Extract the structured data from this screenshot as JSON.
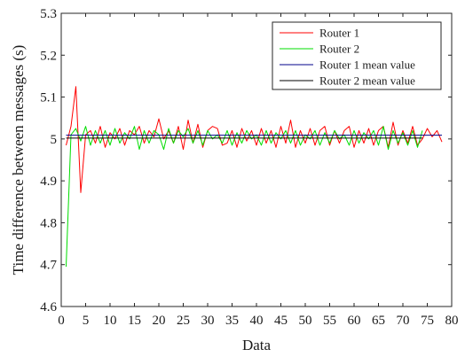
{
  "chart_data": {
    "type": "line",
    "xlabel": "Data",
    "ylabel": "Time difference between messages (s)",
    "xlim": [
      0,
      80
    ],
    "ylim": [
      4.6,
      5.3
    ],
    "xticks": [
      0,
      5,
      10,
      15,
      20,
      25,
      30,
      35,
      40,
      45,
      50,
      55,
      60,
      65,
      70,
      75,
      80
    ],
    "yticks": [
      4.6,
      4.7,
      4.8,
      4.9,
      5,
      5.1,
      5.2,
      5.3
    ],
    "ytick_labels": [
      "4.6",
      "4.7",
      "4.8",
      "4.9",
      "5",
      "5.1",
      "5.2",
      "5.3"
    ],
    "grid": false,
    "legend_position": "top-right",
    "series": [
      {
        "name": "Router 1",
        "color": "#ff0000",
        "x": [
          1,
          2,
          3,
          4,
          5,
          6,
          7,
          8,
          9,
          10,
          11,
          12,
          13,
          14,
          15,
          16,
          17,
          18,
          19,
          20,
          21,
          22,
          23,
          24,
          25,
          26,
          27,
          28,
          29,
          30,
          31,
          32,
          33,
          34,
          35,
          36,
          37,
          38,
          39,
          40,
          41,
          42,
          43,
          44,
          45,
          46,
          47,
          48,
          49,
          50,
          51,
          52,
          53,
          54,
          55,
          56,
          57,
          58,
          59,
          60,
          61,
          62,
          63,
          64,
          65,
          66,
          67,
          68,
          69,
          70,
          71,
          72,
          73,
          74,
          75,
          76,
          77,
          78
        ],
        "values": [
          4.985,
          5.03,
          5.125,
          4.872,
          5.01,
          5.02,
          4.99,
          5.03,
          4.98,
          5.015,
          5.0,
          5.025,
          4.985,
          5.02,
          5.01,
          5.03,
          4.99,
          5.02,
          5.005,
          5.048,
          5.0,
          5.02,
          4.99,
          5.03,
          4.975,
          5.045,
          4.99,
          5.035,
          4.98,
          5.02,
          5.03,
          5.025,
          4.985,
          4.99,
          5.02,
          4.98,
          5.025,
          4.995,
          5.02,
          4.985,
          5.025,
          4.99,
          5.02,
          4.98,
          5.03,
          4.99,
          5.045,
          4.98,
          5.02,
          4.99,
          5.025,
          4.985,
          5.02,
          5.03,
          4.985,
          5.02,
          4.99,
          5.02,
          5.03,
          4.98,
          5.02,
          4.99,
          5.025,
          4.985,
          5.02,
          5.03,
          4.98,
          5.04,
          4.985,
          5.02,
          4.99,
          5.03,
          4.985,
          5.0,
          5.025,
          5.005,
          5.02,
          4.993
        ]
      },
      {
        "name": "Router 2",
        "color": "#00dd00",
        "x": [
          1,
          2,
          3,
          4,
          5,
          6,
          7,
          8,
          9,
          10,
          11,
          12,
          13,
          14,
          15,
          16,
          17,
          18,
          19,
          20,
          21,
          22,
          23,
          24,
          25,
          26,
          27,
          28,
          29,
          30,
          31,
          32,
          33,
          34,
          35,
          36,
          37,
          38,
          39,
          40,
          41,
          42,
          43,
          44,
          45,
          46,
          47,
          48,
          49,
          50,
          51,
          52,
          53,
          54,
          55,
          56,
          57,
          58,
          59,
          60,
          61,
          62,
          63,
          64,
          65,
          66,
          67,
          68,
          69,
          70,
          71,
          72,
          73,
          74
        ],
        "values": [
          4.695,
          5.01,
          5.025,
          4.995,
          5.03,
          4.985,
          5.02,
          4.99,
          5.02,
          4.985,
          5.025,
          4.99,
          5.015,
          5.0,
          5.03,
          4.975,
          5.02,
          4.99,
          5.02,
          5.01,
          4.975,
          5.025,
          4.99,
          5.02,
          5.005,
          5.025,
          4.99,
          5.02,
          4.985,
          5.02,
          5.0,
          5.01,
          4.99,
          5.02,
          4.985,
          5.015,
          4.99,
          5.02,
          5.0,
          5.01,
          4.985,
          5.02,
          4.99,
          5.015,
          5.0,
          5.02,
          4.99,
          5.02,
          4.985,
          5.01,
          5.0,
          5.02,
          4.985,
          5.015,
          4.99,
          5.02,
          5.0,
          5.01,
          4.985,
          5.02,
          4.99,
          5.015,
          5.0,
          5.02,
          4.985,
          5.03,
          4.975,
          5.02,
          4.99,
          5.015,
          4.985,
          5.02,
          4.98,
          5.02
        ]
      },
      {
        "name": "Router 1 mean value",
        "color": "#00008b",
        "x": [
          1,
          78
        ],
        "values": [
          5.009,
          5.009
        ]
      },
      {
        "name": "Router 2 mean value",
        "color": "#000000",
        "x": [
          1,
          74
        ],
        "values": [
          5.002,
          5.002
        ]
      }
    ]
  }
}
